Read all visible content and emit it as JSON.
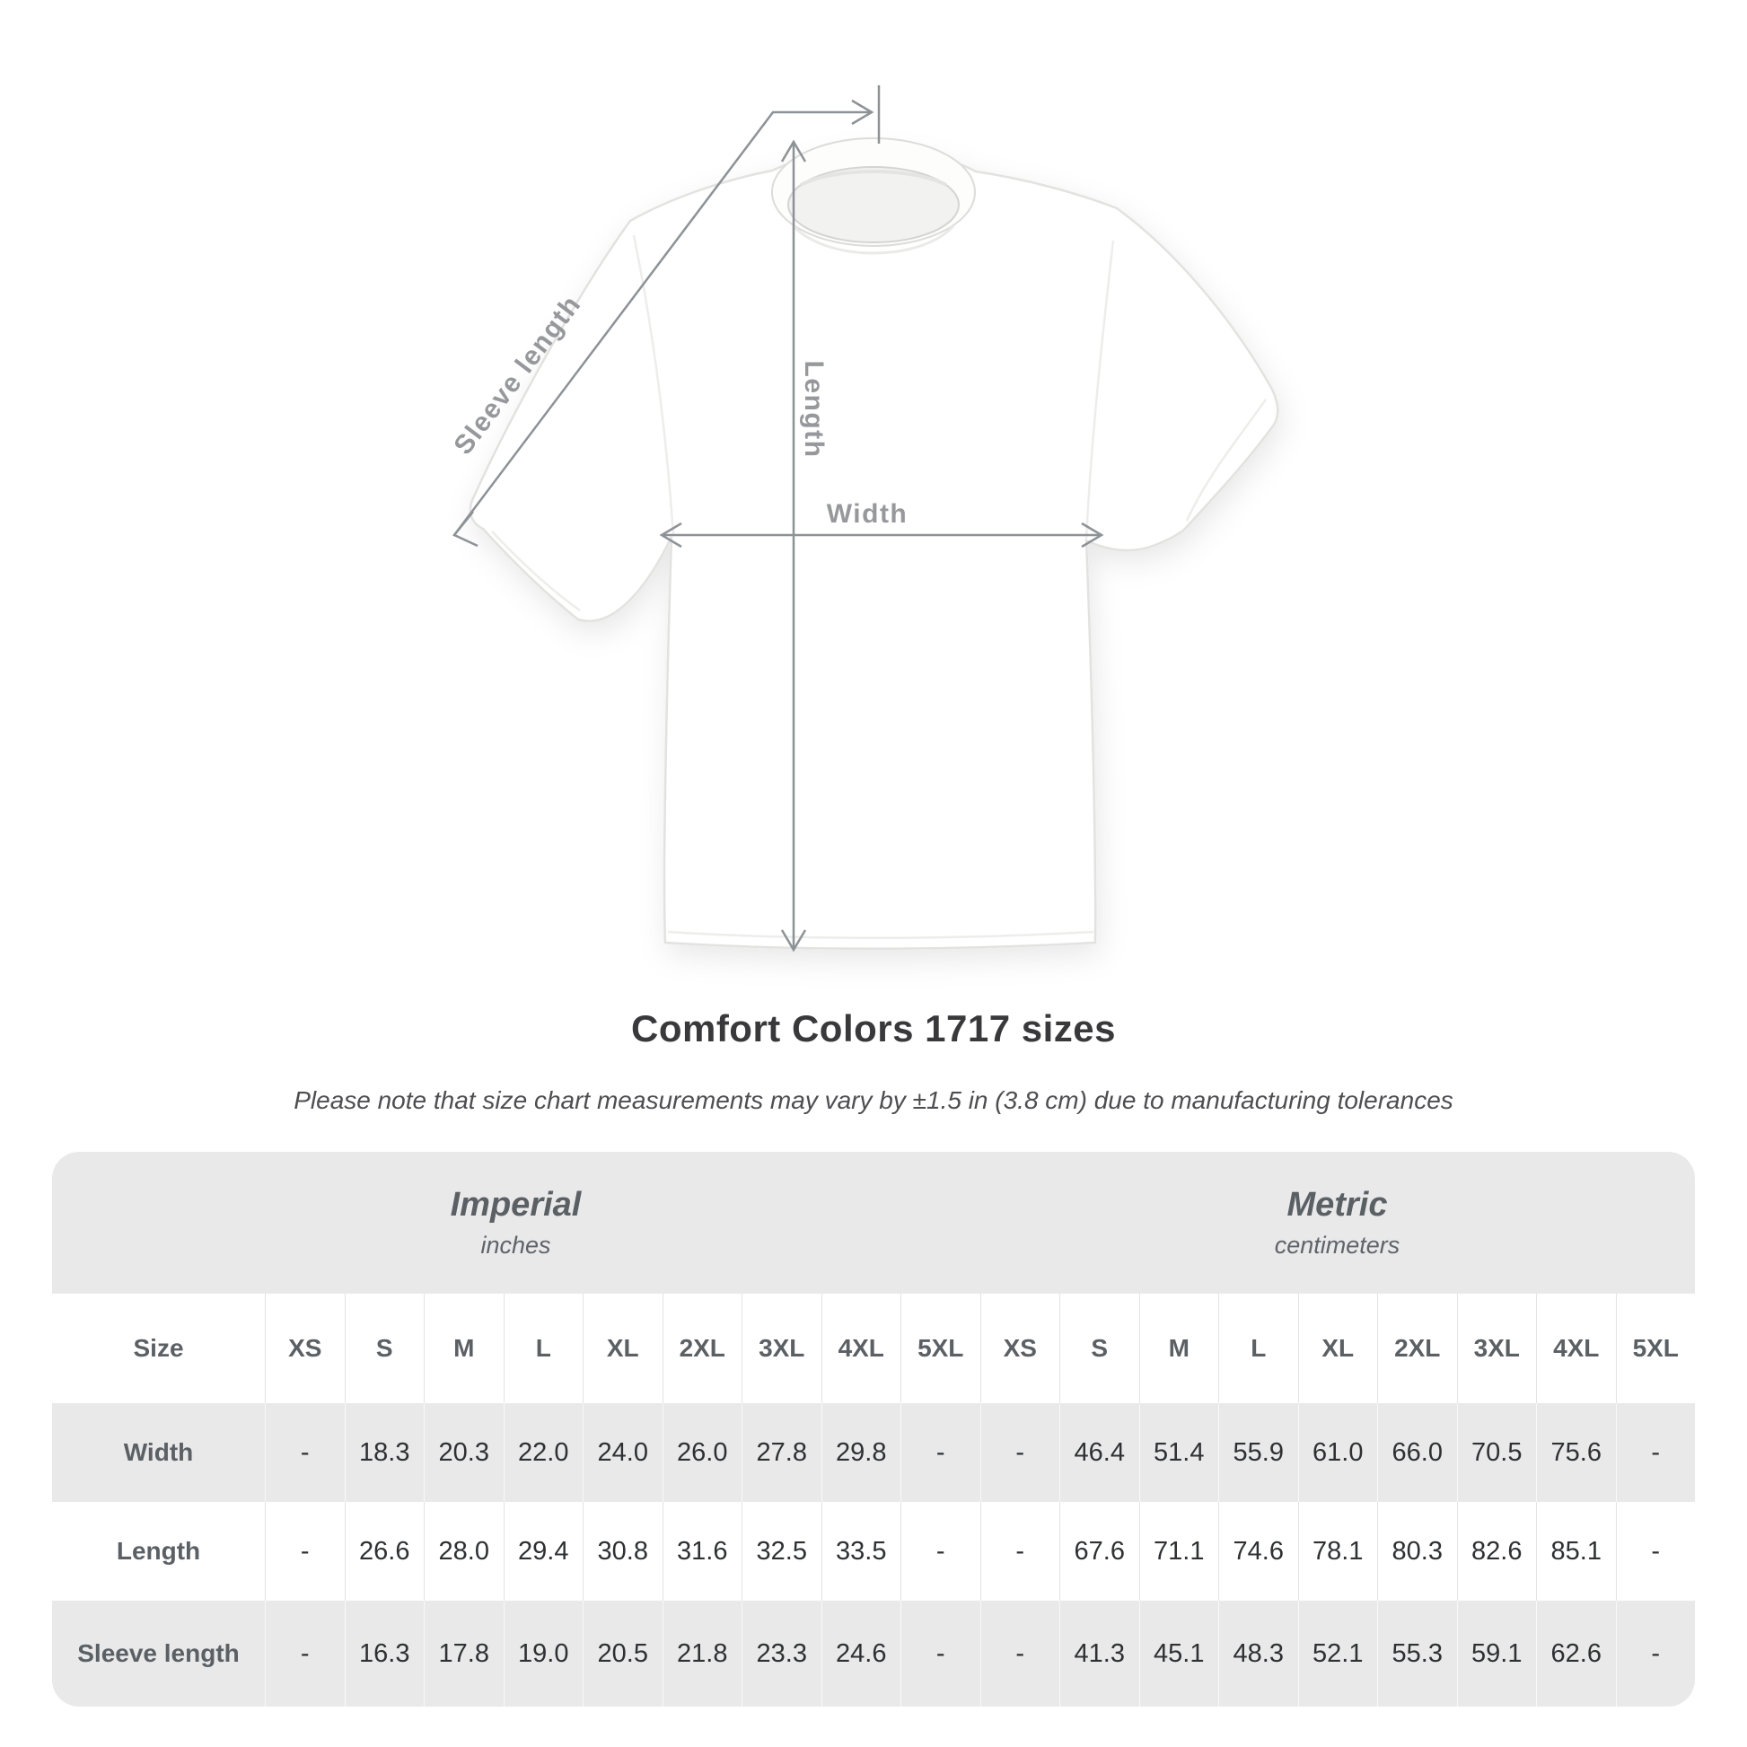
{
  "diagram": {
    "sleeve_label": "Sleeve length",
    "length_label": "Length",
    "width_label": "Width"
  },
  "header": {
    "title": "Comfort Colors 1717 sizes",
    "note": "Please note that size chart measurements may vary by ±1.5 in (3.8 cm) due to manufacturing tolerances"
  },
  "table": {
    "size_col_header": "Size",
    "groups": [
      {
        "label": "Imperial",
        "sublabel": "inches"
      },
      {
        "label": "Metric",
        "sublabel": "centimeters"
      }
    ],
    "sizes": [
      "XS",
      "S",
      "M",
      "L",
      "XL",
      "2XL",
      "3XL",
      "4XL",
      "5XL"
    ],
    "rows": [
      {
        "label": "Width",
        "imperial": [
          "-",
          "18.3",
          "20.3",
          "22.0",
          "24.0",
          "26.0",
          "27.8",
          "29.8",
          "-"
        ],
        "metric": [
          "-",
          "46.4",
          "51.4",
          "55.9",
          "61.0",
          "66.0",
          "70.5",
          "75.6",
          "-"
        ]
      },
      {
        "label": "Length",
        "imperial": [
          "-",
          "26.6",
          "28.0",
          "29.4",
          "30.8",
          "31.6",
          "32.5",
          "33.5",
          "-"
        ],
        "metric": [
          "-",
          "67.6",
          "71.1",
          "74.6",
          "78.1",
          "80.3",
          "82.6",
          "85.1",
          "-"
        ]
      },
      {
        "label": "Sleeve length",
        "imperial": [
          "-",
          "16.3",
          "17.8",
          "19.0",
          "20.5",
          "21.8",
          "23.3",
          "24.6",
          "-"
        ],
        "metric": [
          "-",
          "41.3",
          "45.1",
          "48.3",
          "52.1",
          "55.3",
          "59.1",
          "62.6",
          "-"
        ]
      }
    ]
  },
  "colors": {
    "table_background": "#e9e9ea",
    "header_text": "#5b6065",
    "value_text": "#2e3033",
    "annotation_text": "#97989c",
    "annotation_line": "#8d9296",
    "title_text": "#39393b"
  }
}
